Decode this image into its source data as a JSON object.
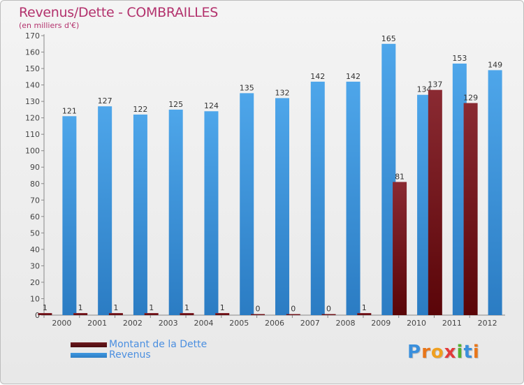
{
  "title": "Revenus/Dette - COMBRAILLES",
  "subtitle": "(en milliers d'€)",
  "logo_letters": [
    "P",
    "r",
    "o",
    "x",
    "i",
    "t",
    "i"
  ],
  "logo_colors": [
    "#3a8fdc",
    "#e8761a",
    "#f0a020",
    "#e23b3b",
    "#55b030",
    "#3a8fdc",
    "#e8761a"
  ],
  "colors": {
    "dette": "#6e1a1e",
    "revenus": "#3e97e0",
    "title": "#b3326d",
    "axis": "#666666"
  },
  "chart_data": {
    "type": "bar",
    "categories": [
      "2000",
      "2001",
      "2002",
      "2003",
      "2004",
      "2005",
      "2006",
      "2007",
      "2008",
      "2009",
      "2010",
      "2011",
      "2012"
    ],
    "series": [
      {
        "name": "Montant de la Dette",
        "values": [
          1,
          1,
          1,
          1,
          1,
          1,
          0,
          0,
          0,
          1,
          81,
          137,
          129
        ]
      },
      {
        "name": "Revenus",
        "values": [
          121,
          127,
          122,
          125,
          124,
          135,
          132,
          142,
          142,
          165,
          134,
          153,
          149
        ]
      }
    ],
    "ylim": [
      0,
      170
    ],
    "yticks": [
      0,
      10,
      20,
      30,
      40,
      50,
      60,
      70,
      80,
      90,
      100,
      110,
      120,
      130,
      140,
      150,
      160,
      170
    ],
    "grid": false,
    "legend": "bottom-left"
  }
}
